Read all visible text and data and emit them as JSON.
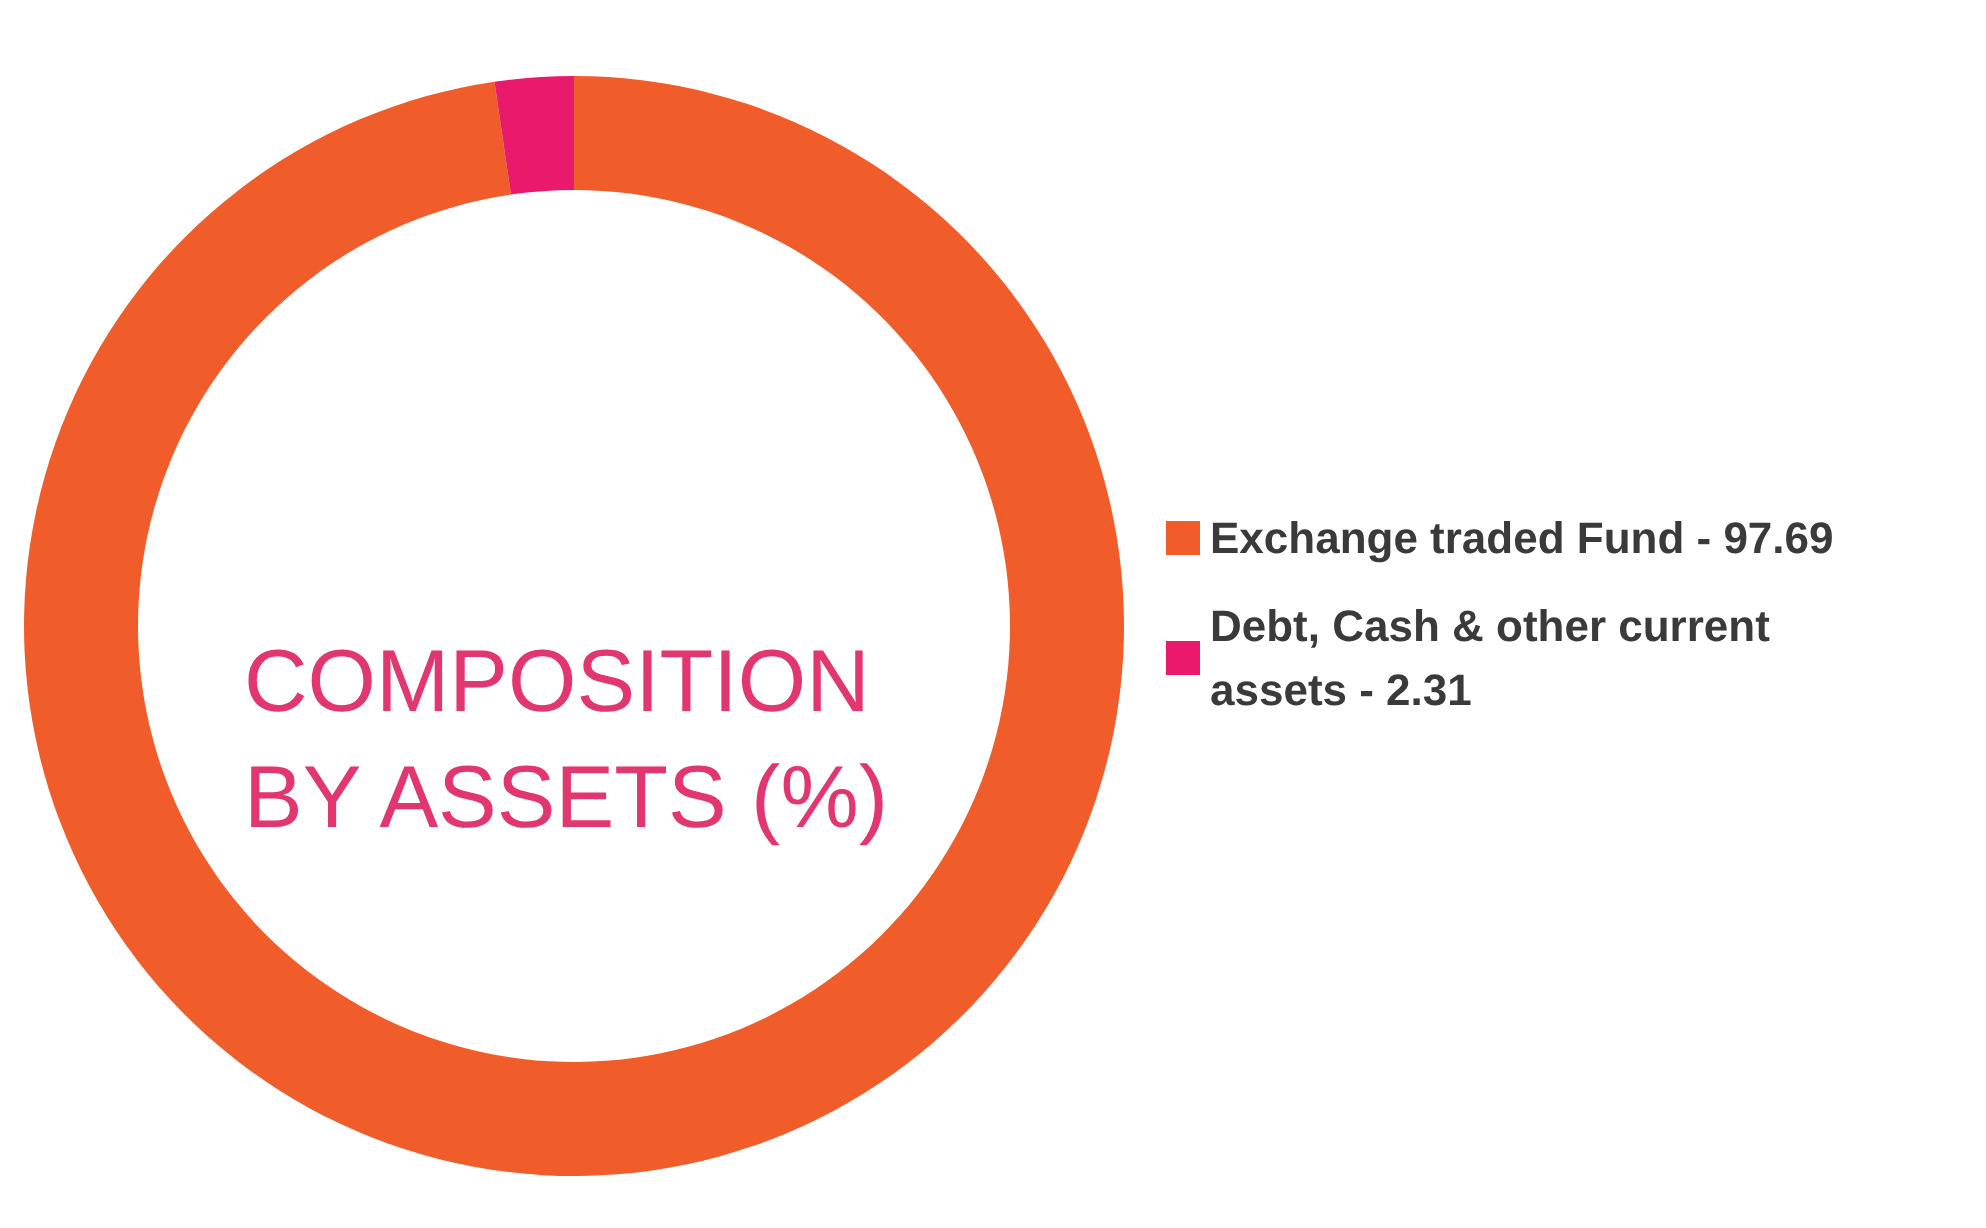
{
  "chart_data": {
    "type": "donut",
    "title": "COMPOSITION BY ASSETS (%)",
    "categories": [
      "Exchange traded Fund - 97.69",
      "Debt, Cash & other current assets - 2.31"
    ],
    "values": [
      97.69,
      2.31
    ],
    "colors": [
      "#f15d2a",
      "#e91a6c"
    ],
    "legend": "right"
  }
}
